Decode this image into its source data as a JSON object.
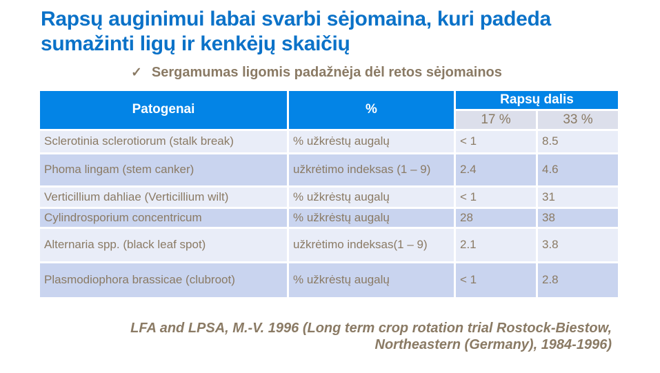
{
  "title": {
    "line1": "Rapsų auginimui labai svarbi sėjomaina, kuri padeda",
    "line2": "sumažinti ligų ir kenkėjų skaičių"
  },
  "bullet": {
    "check": "✓",
    "text": "Sergamumas ligomis padažnėja dėl retos sėjomainos"
  },
  "table": {
    "header": {
      "pathogens": "Patogenai",
      "measure": "%",
      "group": "Rapsų dalis",
      "share17": "17 %",
      "share33": "33 %"
    },
    "rows": [
      {
        "pathogen": "Sclerotinia sclerotiorum (stalk break)",
        "measure": "% užkrėstų augalų",
        "v17": "< 1",
        "v33": "8.5"
      },
      {
        "pathogen": "Phoma lingam (stem canker)",
        "measure": "užkrėtimo indeksas (1 – 9)",
        "v17": "2.4",
        "v33": "4.6"
      },
      {
        "pathogen": "Verticillium dahliae (Verticillium wilt)",
        "measure": "% užkrėstų augalų",
        "v17": "< 1",
        "v33": "31"
      },
      {
        "pathogen": "Cylindrosporium concentricum",
        "measure": "% užkrėstų augalų",
        "v17": "28",
        "v33": "38"
      },
      {
        "pathogen": "Alternaria spp. (black leaf spot)",
        "measure": "užkrėtimo indeksas(1 – 9)",
        "v17": "2.1",
        "v33": "3.8"
      },
      {
        "pathogen": "Plasmodiophora brassicae (clubroot)",
        "measure": "% užkrėstų augalų",
        "v17": "< 1",
        "v33": "2.8"
      }
    ]
  },
  "citation": {
    "line1": "LFA and LPSA, M.-V. 1996 (Long term crop rotation trial Rostock-Biestow,",
    "line2": "Northeastern (Germany), 1984-1996)"
  },
  "colors": {
    "title_blue": "#0b72c8",
    "table_header_blue": "#0384e6",
    "row_light": "#e9edf8",
    "row_dark": "#c9d4ef",
    "subheader_bg": "#dcdfeb",
    "text_brown": "#8a7a64"
  }
}
